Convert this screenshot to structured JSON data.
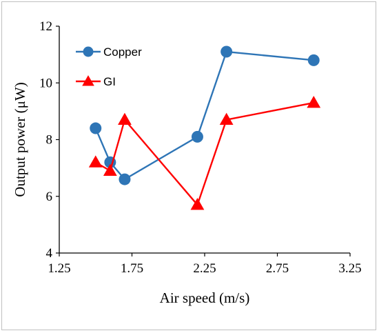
{
  "chart_data": {
    "type": "line",
    "title": "",
    "xlabel": "Air speed (m/s)",
    "ylabel": "Output power (μW)",
    "xlim": [
      1.25,
      3.25
    ],
    "ylim": [
      4,
      12
    ],
    "x_ticks": [
      "1.25",
      "1.75",
      "2.25",
      "2.75",
      "3.25"
    ],
    "y_ticks": [
      "4",
      "6",
      "8",
      "10",
      "12"
    ],
    "grid": false,
    "legend_position": "top-left",
    "series": [
      {
        "name": "Copper",
        "marker": "circle",
        "color": "#2E75B6",
        "x": [
          1.5,
          1.6,
          1.7,
          2.2,
          2.4,
          3.0
        ],
        "y": [
          8.4,
          7.2,
          6.6,
          8.1,
          11.1,
          10.8
        ]
      },
      {
        "name": "GI",
        "marker": "triangle",
        "color": "#FF0000",
        "x": [
          1.5,
          1.6,
          1.7,
          2.2,
          2.4,
          3.0
        ],
        "y": [
          7.2,
          6.9,
          8.7,
          5.7,
          8.7,
          9.3
        ]
      }
    ]
  }
}
